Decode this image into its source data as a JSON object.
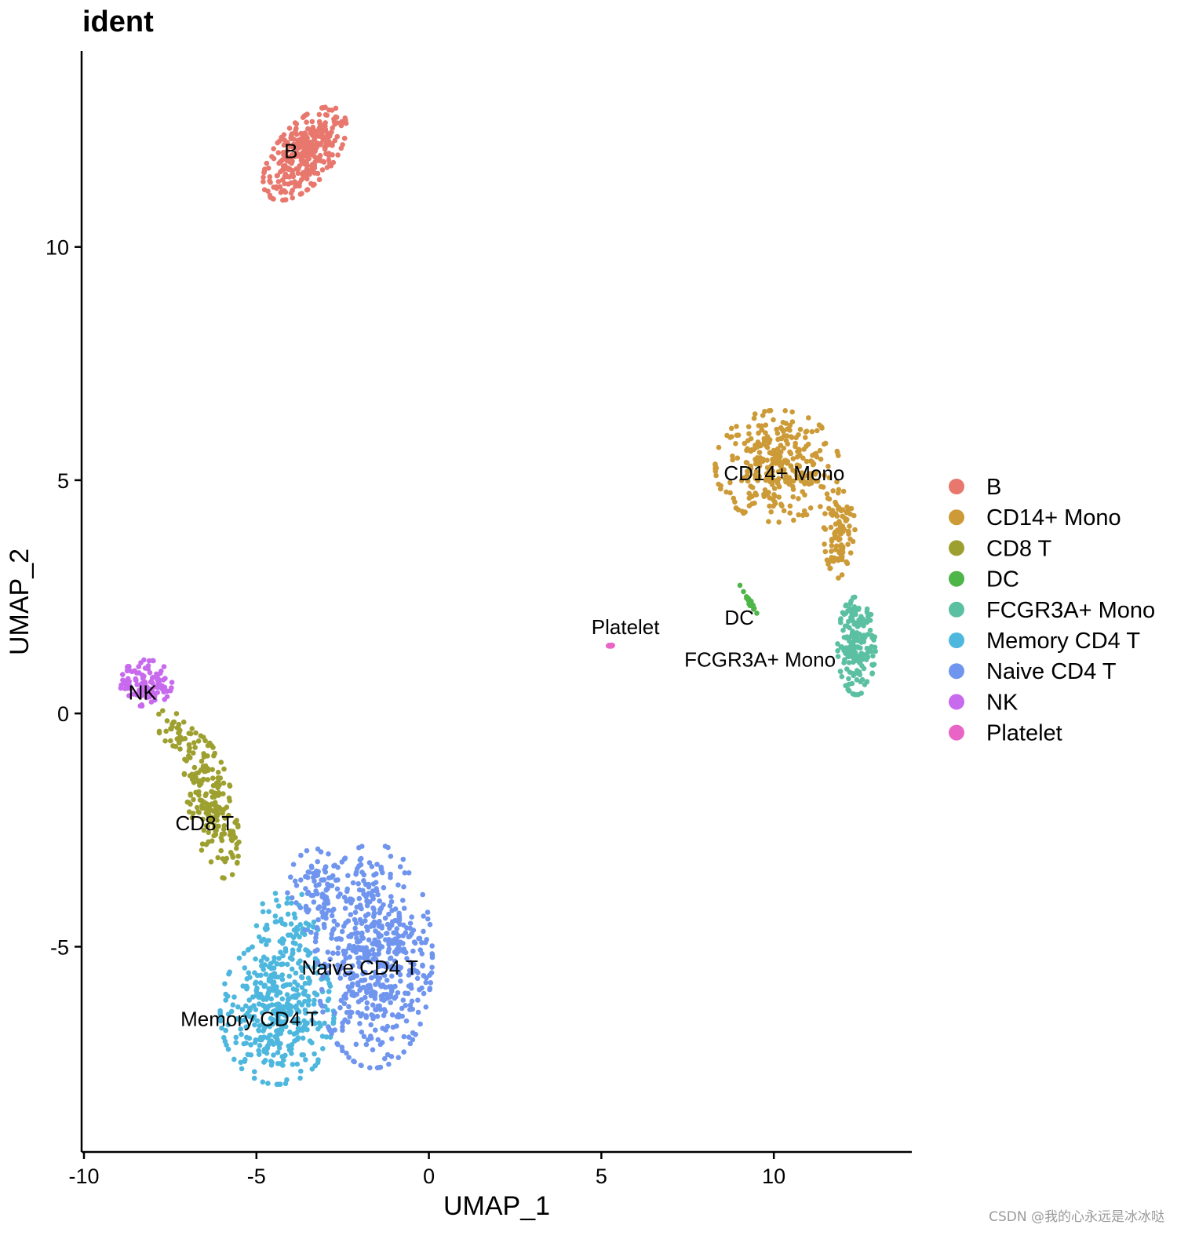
{
  "chart_data": {
    "type": "scatter",
    "title": "ident",
    "xlabel": "UMAP_1",
    "ylabel": "UMAP_2",
    "xlim": [
      -10,
      14
    ],
    "ylim": [
      -9.4,
      14.2
    ],
    "xticks": [
      -10,
      -5,
      0,
      5,
      10
    ],
    "xtick_labels": [
      "-10",
      "-5",
      "0",
      "5",
      "10"
    ],
    "yticks": [
      -5,
      0,
      5,
      10
    ],
    "ytick_labels": [
      "-5",
      "0",
      "5",
      "10"
    ],
    "grid": false,
    "legend_position": "right",
    "series": [
      {
        "name": "B",
        "color": "#E8776D",
        "label": "B",
        "label_pos": [
          -4.0,
          11.9
        ],
        "regions": [
          {
            "cx": -3.6,
            "cy": 12.0,
            "rx": 1.4,
            "ry": 0.7,
            "rot": 36,
            "n": 330
          }
        ]
      },
      {
        "name": "CD14+ Mono",
        "color": "#CC9A36",
        "label": "CD14+ Mono",
        "label_pos": [
          10.3,
          5.0
        ],
        "regions": [
          {
            "cx": 10.1,
            "cy": 5.3,
            "rx": 1.8,
            "ry": 1.2,
            "rot": 0,
            "n": 320
          },
          {
            "cx": 11.9,
            "cy": 3.9,
            "rx": 0.45,
            "ry": 1.0,
            "rot": 0,
            "n": 100
          }
        ]
      },
      {
        "name": "CD8 T",
        "color": "#9DA02F",
        "label": "CD8 T",
        "label_pos": [
          -6.5,
          -2.5
        ],
        "regions": [
          {
            "cx": -6.3,
            "cy": -2.0,
            "rx": 0.65,
            "ry": 1.6,
            "rot": 18,
            "n": 190
          },
          {
            "cx": -7.3,
            "cy": -0.4,
            "rx": 0.7,
            "ry": 0.35,
            "rot": -30,
            "n": 40
          }
        ]
      },
      {
        "name": "DC",
        "color": "#4EB548",
        "label": "DC",
        "label_pos": [
          9.0,
          1.9
        ],
        "regions": [
          {
            "cx": 9.3,
            "cy": 2.4,
            "rx": 0.45,
            "ry": 0.05,
            "rot": -50,
            "n": 22
          }
        ]
      },
      {
        "name": "FCGR3A+ Mono",
        "color": "#5BC0A1",
        "label": "FCGR3A+ Mono",
        "label_pos": [
          9.6,
          1.0
        ],
        "regions": [
          {
            "cx": 12.4,
            "cy": 1.45,
            "rx": 0.55,
            "ry": 1.05,
            "rot": 0,
            "n": 190
          }
        ]
      },
      {
        "name": "Memory CD4 T",
        "color": "#4DB7DE",
        "label": "Memory CD4 T",
        "label_pos": [
          -5.2,
          -6.7
        ],
        "regions": [
          {
            "cx": -4.4,
            "cy": -6.4,
            "rx": 1.65,
            "ry": 1.55,
            "rot": 0,
            "n": 420
          },
          {
            "cx": -4.1,
            "cy": -4.5,
            "rx": 0.9,
            "ry": 0.7,
            "rot": 0,
            "n": 60
          }
        ]
      },
      {
        "name": "Naive CD4 T",
        "color": "#6F95EE",
        "label": "Naive CD4 T",
        "label_pos": [
          -2.0,
          -5.6
        ],
        "regions": [
          {
            "cx": -1.6,
            "cy": -5.2,
            "rx": 1.7,
            "ry": 2.4,
            "rot": 0,
            "n": 560
          },
          {
            "cx": -3.3,
            "cy": -3.8,
            "rx": 0.8,
            "ry": 0.9,
            "rot": 0,
            "n": 80
          }
        ]
      },
      {
        "name": "NK",
        "color": "#C86AEE",
        "label": "NK",
        "label_pos": [
          -8.3,
          0.3
        ],
        "regions": [
          {
            "cx": -8.2,
            "cy": 0.65,
            "rx": 0.75,
            "ry": 0.5,
            "rot": 0,
            "n": 120
          }
        ]
      },
      {
        "name": "Platelet",
        "color": "#E965C5",
        "label": "Platelet",
        "label_pos": [
          5.7,
          1.7
        ],
        "regions": [
          {
            "cx": 5.25,
            "cy": 1.45,
            "rx": 0.1,
            "ry": 0.05,
            "rot": 0,
            "n": 7
          }
        ]
      }
    ]
  },
  "watermark": "CSDN @我的心永远是冰冰哒"
}
